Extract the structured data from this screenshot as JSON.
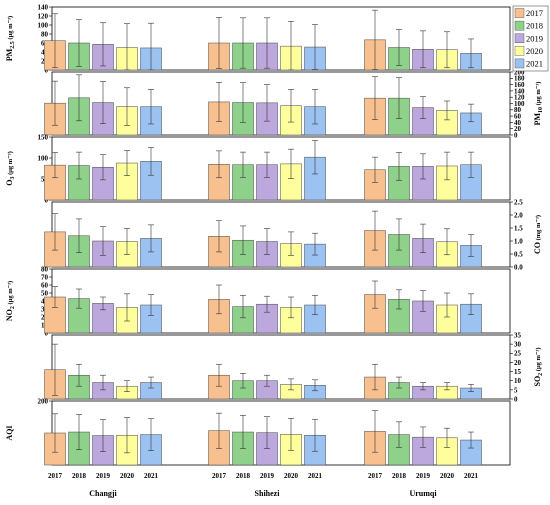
{
  "chart_data": {
    "type": "bar",
    "sites": [
      "Changji",
      "Shihezi",
      "Urumqi"
    ],
    "years": [
      "2017",
      "2018",
      "2019",
      "2020",
      "2021"
    ],
    "colors": [
      "#F9C08F",
      "#8FD08A",
      "#BCA8DC",
      "#FFFE9C",
      "#9CC2F2"
    ],
    "legend_position": "right",
    "panels": [
      {
        "key": "pm25",
        "ylabel_main": "PM",
        "ylabel_sub": "2.5",
        "ylabel_unit": "(μg m⁻³)",
        "axis_side": "left",
        "ylim": [
          0,
          140
        ],
        "ticks": [
          0,
          20,
          40,
          60,
          80,
          100,
          120,
          140
        ],
        "values": [
          [
            65,
            60,
            57,
            50,
            49
          ],
          [
            60,
            60,
            60,
            53,
            51
          ],
          [
            67,
            50,
            46,
            45,
            37
          ]
        ],
        "errors": [
          [
            60,
            52,
            48,
            53,
            55
          ],
          [
            57,
            56,
            56,
            55,
            50
          ],
          [
            66,
            40,
            41,
            40,
            32
          ]
        ]
      },
      {
        "key": "pm10",
        "ylabel_main": "PM",
        "ylabel_sub": "10",
        "ylabel_unit": "(μg m⁻³)",
        "axis_side": "right",
        "ylim": [
          0,
          200
        ],
        "ticks": [
          0,
          20,
          40,
          60,
          80,
          100,
          120,
          140,
          160,
          180,
          200
        ],
        "values": [
          [
            101,
            118,
            103,
            90,
            90
          ],
          [
            105,
            103,
            102,
            93,
            90
          ],
          [
            117,
            117,
            87,
            78,
            70
          ]
        ],
        "errors": [
          [
            70,
            73,
            67,
            60,
            55
          ],
          [
            62,
            63,
            58,
            52,
            55
          ],
          [
            68,
            65,
            35,
            30,
            28
          ]
        ]
      },
      {
        "key": "o3",
        "ylabel_main": "O",
        "ylabel_sub": "3",
        "ylabel_unit": "(μg m⁻³)",
        "axis_side": "left",
        "ylim": [
          0,
          150
        ],
        "ticks": [
          0,
          50,
          100,
          150
        ],
        "values": [
          [
            83,
            82,
            78,
            88,
            92
          ],
          [
            85,
            84,
            84,
            86,
            102
          ],
          [
            72,
            80,
            80,
            81,
            84
          ]
        ],
        "errors": [
          [
            30,
            32,
            30,
            30,
            33
          ],
          [
            32,
            30,
            30,
            35,
            40
          ],
          [
            30,
            33,
            30,
            33,
            30
          ]
        ]
      },
      {
        "key": "co",
        "ylabel_main": "CO",
        "ylabel_sub": "",
        "ylabel_unit": "(mg m⁻³)",
        "axis_side": "right",
        "ylim": [
          0,
          2.5
        ],
        "ticks": [
          0.0,
          0.5,
          1.0,
          1.5,
          2.0,
          2.5
        ],
        "tick_decimals": 1,
        "values": [
          [
            1.35,
            1.2,
            1.0,
            0.98,
            1.1
          ],
          [
            1.18,
            1.03,
            0.98,
            0.9,
            0.88
          ],
          [
            1.4,
            1.25,
            1.1,
            0.97,
            0.83
          ]
        ],
        "errors": [
          [
            0.7,
            0.65,
            0.55,
            0.5,
            0.52
          ],
          [
            0.6,
            0.55,
            0.5,
            0.45,
            0.42
          ],
          [
            0.75,
            0.6,
            0.55,
            0.5,
            0.42
          ]
        ]
      },
      {
        "key": "no2",
        "ylabel_main": "NO",
        "ylabel_sub": "2",
        "ylabel_unit": "(μg m⁻³)",
        "axis_side": "left",
        "ylim": [
          0,
          80
        ],
        "ticks": [
          0,
          10,
          20,
          30,
          40,
          50,
          60,
          70,
          80
        ],
        "values": [
          [
            45,
            43,
            37,
            32,
            35
          ],
          [
            42,
            33,
            36,
            32,
            35
          ],
          [
            48,
            42,
            40,
            35,
            36
          ]
        ],
        "errors": [
          [
            13,
            12,
            8,
            17,
            13
          ],
          [
            18,
            14,
            10,
            13,
            12
          ],
          [
            17,
            12,
            13,
            15,
            13
          ]
        ]
      },
      {
        "key": "so2",
        "ylabel_main": "SO",
        "ylabel_sub": "2",
        "ylabel_unit": "(μg m⁻³)",
        "axis_side": "right",
        "ylim": [
          0,
          35
        ],
        "ticks": [
          0,
          5,
          10,
          15,
          20,
          25,
          30,
          35
        ],
        "values": [
          [
            16,
            13,
            9,
            7,
            9
          ],
          [
            13,
            10,
            10,
            8,
            7.5
          ],
          [
            12,
            9,
            7,
            7,
            6
          ]
        ],
        "errors": [
          [
            14,
            6,
            4,
            3,
            3
          ],
          [
            6,
            4,
            3,
            3,
            3
          ],
          [
            7,
            3,
            2,
            2,
            2
          ]
        ]
      },
      {
        "key": "aqi",
        "ylabel_main": "AQI",
        "ylabel_sub": "",
        "ylabel_unit": "",
        "axis_side": "left",
        "ylim": [
          0,
          200
        ],
        "ticks": [
          200
        ],
        "values": [
          [
            100,
            103,
            92,
            93,
            95
          ],
          [
            107,
            103,
            101,
            96,
            93
          ],
          [
            105,
            95,
            87,
            85,
            78
          ]
        ],
        "errors": [
          [
            60,
            55,
            50,
            55,
            50
          ],
          [
            55,
            52,
            50,
            50,
            50
          ],
          [
            65,
            40,
            32,
            30,
            25
          ]
        ]
      }
    ]
  }
}
